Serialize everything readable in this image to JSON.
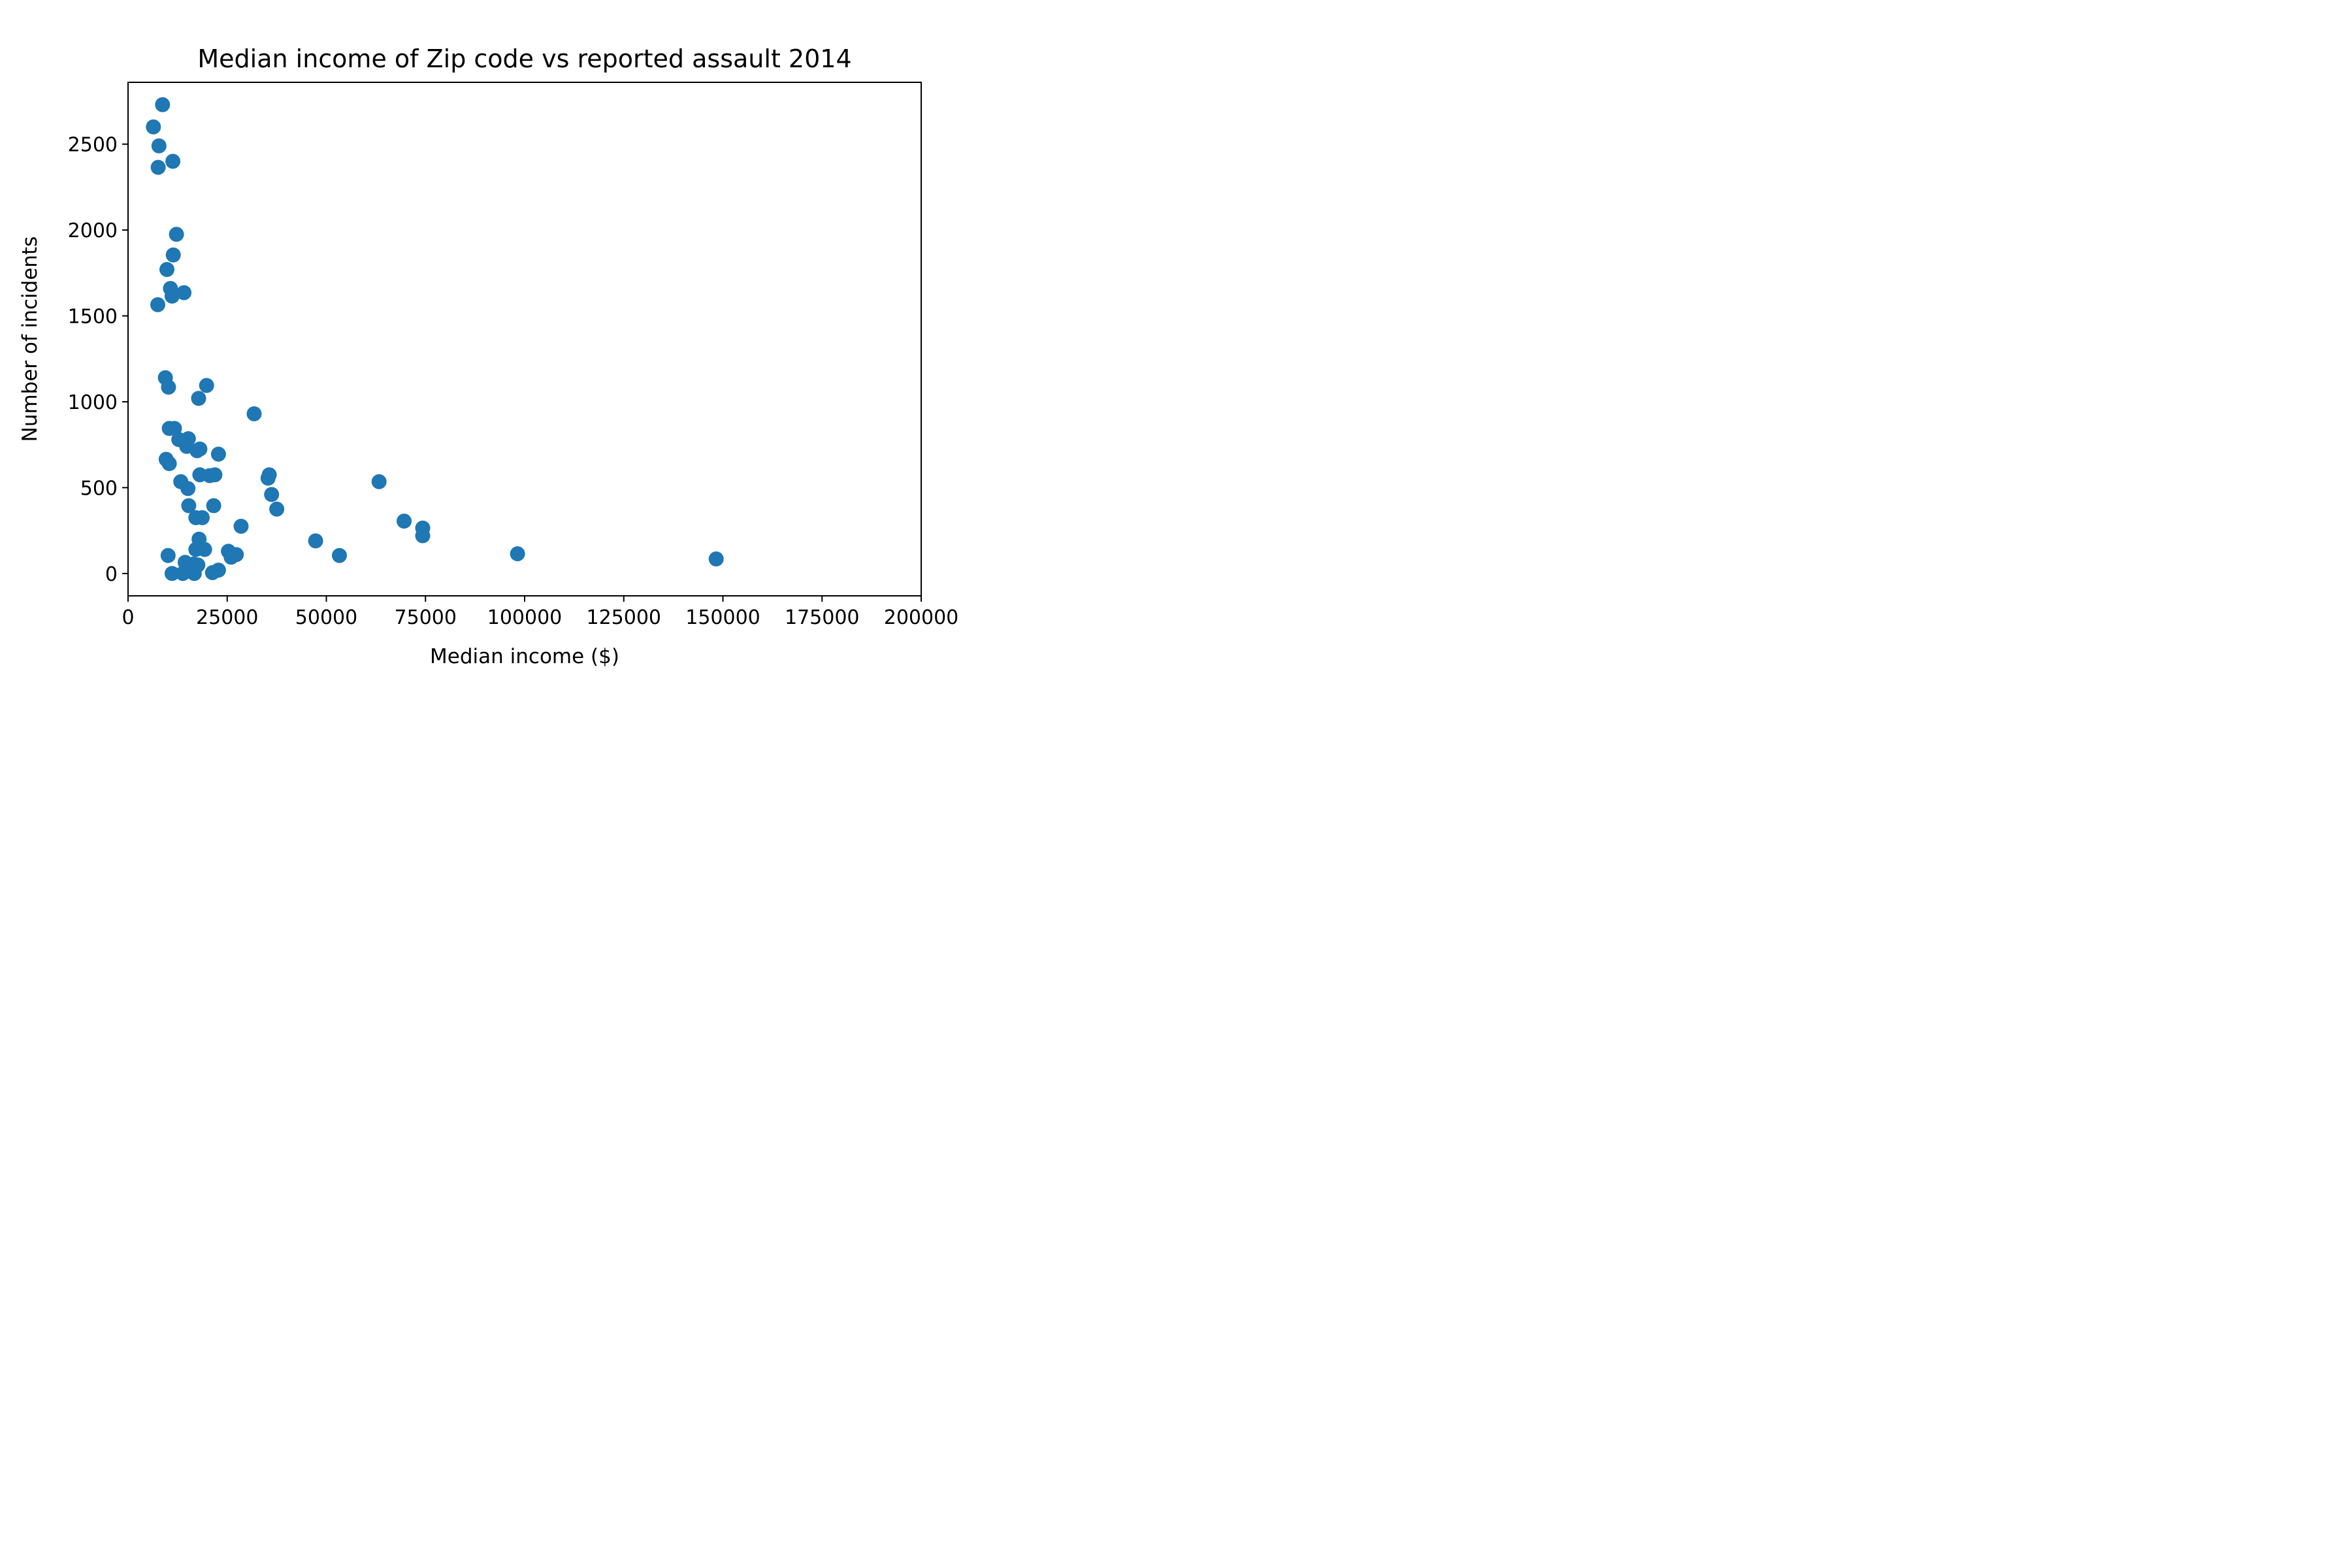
{
  "chart_data": {
    "type": "scatter",
    "title": "Median income of Zip code vs reported assault 2014",
    "xlabel": "Median income ($)",
    "ylabel": "Number of incidents",
    "xlim": [
      0,
      200000
    ],
    "ylim": [
      -130,
      2860
    ],
    "xticks": [
      0,
      25000,
      50000,
      75000,
      100000,
      125000,
      150000,
      175000,
      200000
    ],
    "yticks": [
      0,
      500,
      1000,
      1500,
      2000,
      2500
    ],
    "grid": false,
    "legend": "none",
    "marker_color": "#1f77b4",
    "series": [
      {
        "points": [
          [
            8700,
            2730
          ],
          [
            6400,
            2600
          ],
          [
            7800,
            2490
          ],
          [
            7600,
            2365
          ],
          [
            11300,
            2400
          ],
          [
            12200,
            1975
          ],
          [
            11400,
            1855
          ],
          [
            9800,
            1770
          ],
          [
            10700,
            1660
          ],
          [
            14100,
            1635
          ],
          [
            11100,
            1615
          ],
          [
            7500,
            1565
          ],
          [
            9400,
            1140
          ],
          [
            10200,
            1085
          ],
          [
            19800,
            1095
          ],
          [
            17800,
            1020
          ],
          [
            31800,
            930
          ],
          [
            10400,
            845
          ],
          [
            11700,
            845
          ],
          [
            15200,
            785
          ],
          [
            12800,
            780
          ],
          [
            14800,
            740
          ],
          [
            18100,
            725
          ],
          [
            17400,
            715
          ],
          [
            22800,
            695
          ],
          [
            9600,
            665
          ],
          [
            10400,
            640
          ],
          [
            18100,
            575
          ],
          [
            20600,
            570
          ],
          [
            21900,
            575
          ],
          [
            35600,
            575
          ],
          [
            35300,
            555
          ],
          [
            13300,
            535
          ],
          [
            15100,
            495
          ],
          [
            36200,
            460
          ],
          [
            63300,
            535
          ],
          [
            15300,
            395
          ],
          [
            21600,
            395
          ],
          [
            37500,
            375
          ],
          [
            17100,
            325
          ],
          [
            18700,
            325
          ],
          [
            69600,
            305
          ],
          [
            28500,
            275
          ],
          [
            74300,
            265
          ],
          [
            74300,
            220
          ],
          [
            17900,
            200
          ],
          [
            47300,
            190
          ],
          [
            17100,
            140
          ],
          [
            19300,
            140
          ],
          [
            25300,
            130
          ],
          [
            27300,
            110
          ],
          [
            26000,
            95
          ],
          [
            10100,
            105
          ],
          [
            53300,
            105
          ],
          [
            98200,
            115
          ],
          [
            148300,
            85
          ],
          [
            14400,
            65
          ],
          [
            16500,
            55
          ],
          [
            17600,
            50
          ],
          [
            22800,
            20
          ],
          [
            21300,
            5
          ],
          [
            11100,
            0
          ],
          [
            13800,
            0
          ],
          [
            16700,
            0
          ]
        ]
      }
    ]
  }
}
